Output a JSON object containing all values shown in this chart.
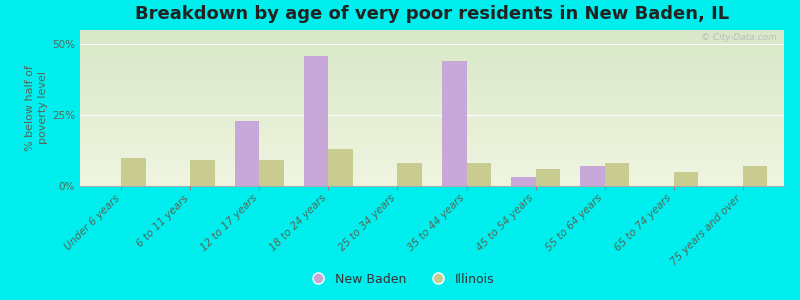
{
  "title": "Breakdown by age of very poor residents in New Baden, IL",
  "categories": [
    "Under 6 years",
    "6 to 11 years",
    "12 to 17 years",
    "18 to 24 years",
    "25 to 34 years",
    "35 to 44 years",
    "45 to 54 years",
    "55 to 64 years",
    "65 to 74 years",
    "75 years and over"
  ],
  "new_baden": [
    0,
    0,
    23,
    46,
    0,
    44,
    3,
    7,
    0,
    0
  ],
  "illinois": [
    10,
    9,
    9,
    13,
    8,
    8,
    6,
    8,
    5,
    7
  ],
  "new_baden_color": "#c8a8d8",
  "illinois_color": "#c8cc90",
  "background_color": "#00eeee",
  "plot_bg_top": "#d8e8c8",
  "plot_bg_bottom": "#f0f5e0",
  "ylim": [
    0,
    55
  ],
  "yticks": [
    0,
    25,
    50
  ],
  "ytick_labels": [
    "0%",
    "25%",
    "50%"
  ],
  "ylabel": "% below half of\npoverty level",
  "bar_width": 0.35,
  "legend_new_baden": "New Baden",
  "legend_illinois": "Illinois",
  "title_fontsize": 13,
  "axis_label_fontsize": 8,
  "tick_fontsize": 7.5,
  "watermark": "© City-Data.com"
}
